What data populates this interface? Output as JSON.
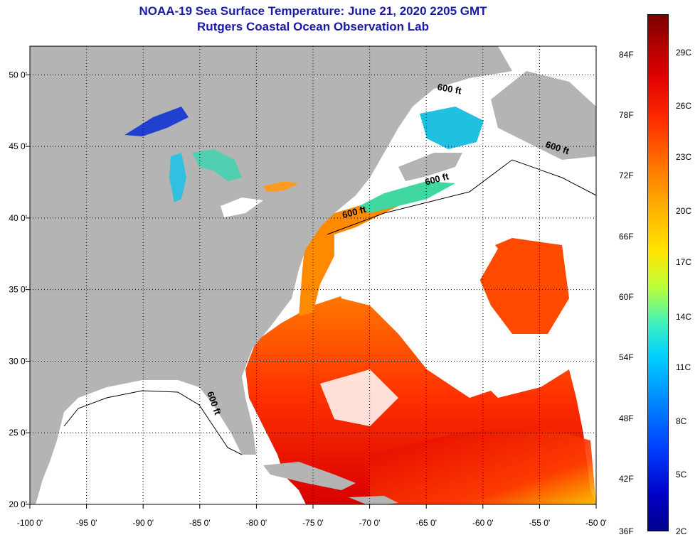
{
  "header": {
    "title": "NOAA-19 Sea Surface Temperature:  June 21, 2020 2205 GMT",
    "subtitle": "Rutgers Coastal Ocean Observation Lab"
  },
  "map": {
    "lon_range": [
      -100,
      -50
    ],
    "lat_range": [
      20,
      52
    ],
    "lon_ticks": [
      {
        "value": -100,
        "label": "-100 0'"
      },
      {
        "value": -95,
        "label": "-95 0'"
      },
      {
        "value": -90,
        "label": "-90 0'"
      },
      {
        "value": -85,
        "label": "-85 0'"
      },
      {
        "value": -80,
        "label": "-80 0'"
      },
      {
        "value": -75,
        "label": "-75 0'"
      },
      {
        "value": -70,
        "label": "-70 0'"
      },
      {
        "value": -65,
        "label": "-65 0'"
      },
      {
        "value": -60,
        "label": "-60 0'"
      },
      {
        "value": -55,
        "label": "-55 0'"
      },
      {
        "value": -50,
        "label": "-50 0'"
      }
    ],
    "lat_ticks": [
      {
        "value": 50,
        "label": "50 0'"
      },
      {
        "value": 45,
        "label": "45 0'"
      },
      {
        "value": 40,
        "label": "40 0'"
      },
      {
        "value": 35,
        "label": "35 0'"
      },
      {
        "value": 30,
        "label": "30 0'"
      },
      {
        "value": 25,
        "label": "25 0'"
      },
      {
        "value": 20,
        "label": "20 0'"
      }
    ],
    "isobath_labels": [
      {
        "text": "600 ft",
        "lon": -63,
        "lat": 48.8,
        "angle": 10
      },
      {
        "text": "600 ft",
        "lon": -53.5,
        "lat": 44.7,
        "angle": 18
      },
      {
        "text": "600 ft",
        "lon": -64,
        "lat": 42.5,
        "angle": -15
      },
      {
        "text": "600 ft",
        "lon": -71.3,
        "lat": 40.2,
        "angle": -15
      },
      {
        "text": "600 ft",
        "lon": -84,
        "lat": 27,
        "angle": 70
      }
    ],
    "colors": {
      "land": "#b4b4b4",
      "cloud": "#ffffff",
      "gulf": "#ffffff"
    }
  },
  "colorbar": {
    "fahrenheit": [
      {
        "label": "84F",
        "pos": 0.078
      },
      {
        "label": "78F",
        "pos": 0.195
      },
      {
        "label": "72F",
        "pos": 0.312
      },
      {
        "label": "66F",
        "pos": 0.43
      },
      {
        "label": "60F",
        "pos": 0.547
      },
      {
        "label": "54F",
        "pos": 0.664
      },
      {
        "label": "48F",
        "pos": 0.782
      },
      {
        "label": "42F",
        "pos": 0.898
      },
      {
        "label": "36F",
        "pos": 1.0
      }
    ],
    "celsius": [
      {
        "label": "29C",
        "pos": 0.074
      },
      {
        "label": "26C",
        "pos": 0.177
      },
      {
        "label": "23C",
        "pos": 0.276
      },
      {
        "label": "20C",
        "pos": 0.38
      },
      {
        "label": "17C",
        "pos": 0.48
      },
      {
        "label": "14C",
        "pos": 0.585
      },
      {
        "label": "11C",
        "pos": 0.683
      },
      {
        "label": "8C",
        "pos": 0.787
      },
      {
        "label": "5C",
        "pos": 0.89
      },
      {
        "label": "2C",
        "pos": 1.0
      }
    ]
  }
}
